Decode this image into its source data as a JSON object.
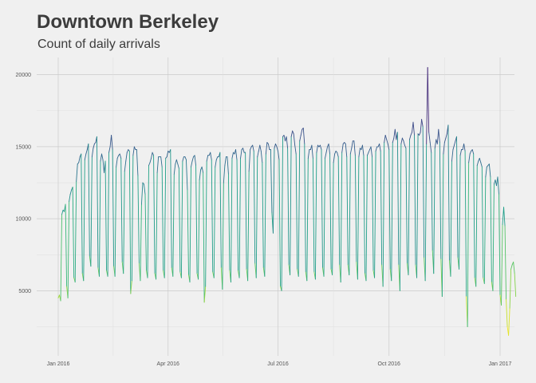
{
  "chart_data": {
    "type": "line",
    "title": "Downtown Berkeley",
    "subtitle": "Count of daily arrivals",
    "xlabel": "",
    "ylabel": "",
    "x_range": [
      "2016-01-01",
      "2017-01-01"
    ],
    "ylim": [
      700,
      21200
    ],
    "y_ticks": [
      5000,
      10000,
      15000,
      20000
    ],
    "x_ticks": [
      {
        "date": "2016-01-01",
        "label": "Jan 2016"
      },
      {
        "date": "2016-04-01",
        "label": "Apr 2016"
      },
      {
        "date": "2016-07-01",
        "label": "Jul 2016"
      },
      {
        "date": "2016-10-01",
        "label": "Oct 2016"
      },
      {
        "date": "2017-01-01",
        "label": "Jan 2017"
      }
    ],
    "grid": true,
    "legend": "none",
    "color_scale": "viridis (reversed: low values yellow, high values purple)",
    "series": [
      {
        "start_date": "2016-01-01",
        "values": [
          4500,
          4700,
          4300,
          10300,
          10600,
          10500,
          11000,
          5300,
          4500,
          11200,
          11700,
          12000,
          12200,
          5900,
          5600,
          12600,
          13800,
          13900,
          14300,
          14500,
          6200,
          5700,
          14100,
          14500,
          14800,
          15200,
          7400,
          6700,
          14300,
          14900,
          15200,
          15300,
          15700,
          6600,
          6000,
          14000,
          14500,
          14100,
          13200,
          14000,
          6400,
          6000,
          14600,
          15000,
          15800,
          14800,
          6700,
          6000,
          13600,
          14200,
          14400,
          14500,
          14200,
          7000,
          6200,
          13300,
          14000,
          14600,
          14800,
          14700,
          4800,
          5700,
          14400,
          15000,
          14800,
          14800,
          13000,
          6900,
          5700,
          11000,
          12500,
          12400,
          11700,
          6400,
          5900,
          13700,
          13900,
          14200,
          14600,
          14400,
          6200,
          5800,
          13200,
          14300,
          14300,
          14300,
          13600,
          6400,
          5900,
          14200,
          14300,
          14700,
          14600,
          14800,
          6600,
          6000,
          13100,
          13800,
          14100,
          13800,
          13500,
          6300,
          5900,
          14000,
          14300,
          14300,
          14100,
          12000,
          6100,
          5600,
          13600,
          14000,
          14300,
          14400,
          13700,
          6200,
          5800,
          12700,
          13400,
          13600,
          13200,
          4200,
          5300,
          14000,
          14400,
          14400,
          14600,
          14100,
          6300,
          5900,
          13600,
          14100,
          14300,
          14300,
          14600,
          6600,
          5100,
          12500,
          13700,
          14300,
          14300,
          13100,
          6400,
          5600,
          14200,
          14600,
          14500,
          14800,
          14100,
          6400,
          5900,
          14200,
          14800,
          14900,
          14600,
          14600,
          6500,
          5700,
          13300,
          14800,
          15000,
          15100,
          14700,
          6900,
          5900,
          14300,
          14700,
          15100,
          14700,
          13900,
          6600,
          6000,
          14500,
          15300,
          15200,
          14800,
          14800,
          10400,
          9000,
          14900,
          15200,
          15000,
          14700,
          14100,
          5300,
          5000,
          15700,
          15800,
          15400,
          15700,
          14900,
          6800,
          6100,
          15700,
          16100,
          15900,
          15100,
          14500,
          6500,
          6000,
          15400,
          15800,
          16200,
          16300,
          15200,
          6300,
          5700,
          14200,
          14800,
          14800,
          15100,
          14200,
          6300,
          5800,
          14600,
          15100,
          15000,
          15100,
          14800,
          6600,
          6000,
          14200,
          14600,
          15000,
          15200,
          14500,
          6500,
          6100,
          13900,
          14500,
          14700,
          14600,
          14300,
          6800,
          5600,
          14600,
          15200,
          15300,
          15200,
          14300,
          6800,
          6100,
          14500,
          14900,
          15400,
          15400,
          14400,
          7000,
          5800,
          14300,
          14900,
          14800,
          15100,
          14400,
          6200,
          5700,
          14400,
          14600,
          14800,
          15000,
          14300,
          6400,
          5900,
          14700,
          15000,
          15000,
          15200,
          14700,
          6800,
          5300,
          15300,
          15800,
          15500,
          15200,
          14800,
          6500,
          5700,
          15300,
          15600,
          16200,
          15500,
          16000,
          6800,
          5000,
          15200,
          15600,
          15400,
          15100,
          14900,
          6900,
          6100,
          15500,
          15800,
          16000,
          16700,
          15800,
          6800,
          5900,
          15900,
          15800,
          16000,
          16900,
          16400,
          7300,
          5700,
          15200,
          20500,
          16000,
          15300,
          14600,
          7800,
          6200,
          14900,
          15500,
          15200,
          16200,
          15300,
          7200,
          4600,
          14500,
          15300,
          15600,
          15900,
          16500,
          7100,
          6000,
          14000,
          14800,
          15100,
          15400,
          15700,
          7300,
          6500,
          14400,
          14800,
          14800,
          15200,
          14700,
          4600,
          2500,
          13900,
          14500,
          14700,
          14800,
          14500,
          5900,
          5300,
          13700,
          14000,
          14200,
          13900,
          13600,
          5900,
          5500,
          12900,
          13600,
          13700,
          13800,
          12900,
          5600,
          5000,
          12400,
          12700,
          12300,
          12900,
          11700,
          4700,
          4000,
          9600,
          10800,
          9500,
          4400,
          2500,
          1900,
          3800,
          6500,
          6800,
          7000,
          6200,
          4600
        ]
      }
    ]
  }
}
